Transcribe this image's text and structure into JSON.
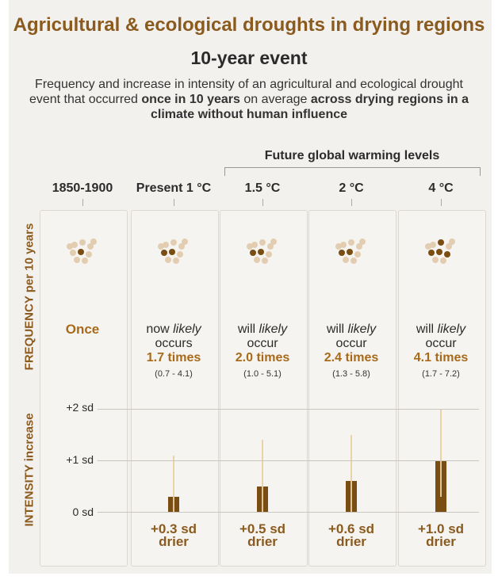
{
  "title": "Agricultural & ecological droughts in drying regions",
  "subtitle": "10-year event",
  "description": {
    "part1": "Frequency and increase in intensity of an agricultural and ecological drought event that occurred ",
    "bold1": "once in 10 years",
    "part2": " on average ",
    "bold2": "across drying regions in a climate without human influence"
  },
  "future_label": "Future global warming levels",
  "side_labels": {
    "frequency": "FREQUENCY per 10 years",
    "intensity": "INTENSITY increase"
  },
  "colors": {
    "title": "#8a5a1e",
    "bar": "#7a4d12",
    "whisker": "#ead3a6",
    "dot_light": "#e3cdb1",
    "dot_dark": "#7a4d12"
  },
  "columns": [
    {
      "header": "1850-1900",
      "freq_line1": "Once",
      "freq_line2": "",
      "times": "",
      "range": "",
      "intensity_label": ""
    },
    {
      "header": "Present 1 °C",
      "freq_line1": "now likely",
      "freq_line2": "occurs",
      "times": "1.7 times",
      "range": "(0.7 - 4.1)",
      "intensity_label": "+0.3 sd drier"
    },
    {
      "header": "1.5 °C",
      "freq_line1": "will likely",
      "freq_line2": "occur",
      "times": "2.0 times",
      "range": "(1.0 - 5.1)",
      "intensity_label": "+0.5 sd drier"
    },
    {
      "header": "2 °C",
      "freq_line1": "will likely",
      "freq_line2": "occur",
      "times": "2.4 times",
      "range": "(1.3 - 5.8)",
      "intensity_label": "+0.6 sd drier"
    },
    {
      "header": "4 °C",
      "freq_line1": "will likely",
      "freq_line2": "occur",
      "times": "4.1 times",
      "range": "(1.7 - 7.2)",
      "intensity_label": "+1.0 sd drier"
    }
  ],
  "chart_data": {
    "type": "bar",
    "categories": [
      "1850-1900",
      "Present 1 °C",
      "1.5 °C",
      "2 °C",
      "4 °C"
    ],
    "frequency": {
      "values": [
        1,
        1.7,
        2.0,
        2.4,
        4.1
      ],
      "ranges": [
        null,
        [
          0.7,
          4.1
        ],
        [
          1.0,
          5.1
        ],
        [
          1.3,
          5.8
        ],
        [
          1.7,
          7.2
        ]
      ],
      "dark_dots": [
        1,
        2,
        2,
        2,
        4
      ]
    },
    "intensity": {
      "values": [
        0,
        0.3,
        0.5,
        0.6,
        1.0
      ],
      "ranges": [
        null,
        [
          0.0,
          1.1
        ],
        [
          0.0,
          1.4
        ],
        [
          0.0,
          1.5
        ],
        [
          0.3,
          2.0
        ]
      ],
      "unit": "sd",
      "yticks": [
        "+2 sd",
        "+1 sd",
        "0 sd"
      ],
      "ylim": [
        0,
        2
      ]
    }
  }
}
